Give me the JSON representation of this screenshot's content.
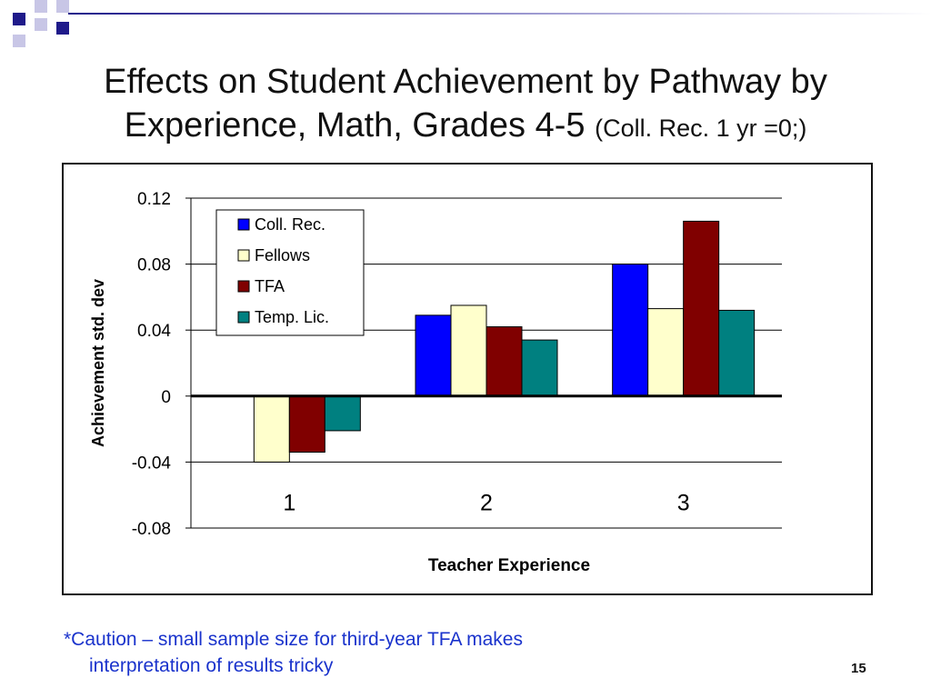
{
  "slide": {
    "title_line1": "Effects on Student Achievement by Pathway by",
    "title_line2": "Experience, Math, Grades 4-5",
    "title_note": "(Coll. Rec. 1 yr =0;)",
    "footnote_line1": "*Caution – small sample size for third-year TFA makes",
    "footnote_line2": "interpretation of results tricky",
    "page_number": "15",
    "accent_colors": {
      "dark_blue": "#1f1a8a",
      "light_blue": "#8a86c8"
    }
  },
  "chart_data": {
    "type": "bar",
    "categories": [
      "1",
      "2",
      "3"
    ],
    "xlabel": "Teacher Experience",
    "ylabel": "Achievement std. dev",
    "ylim": [
      -0.08,
      0.12
    ],
    "yticks": [
      0.12,
      0.08,
      0.04,
      0,
      -0.04,
      -0.08
    ],
    "ytick_labels": [
      "0.12",
      "0.08",
      "0.04",
      "0",
      "-0.04",
      "-0.08"
    ],
    "grid": true,
    "legend_position": "top-left",
    "series": [
      {
        "name": "Coll. Rec.",
        "color": "#0000ff",
        "values": [
          0,
          0.049,
          0.08
        ]
      },
      {
        "name": "Fellows",
        "color": "#ffffcc",
        "values": [
          -0.04,
          0.055,
          0.053
        ]
      },
      {
        "name": "TFA",
        "color": "#800000",
        "values": [
          -0.034,
          0.042,
          0.106
        ]
      },
      {
        "name": "Temp. Lic.",
        "color": "#008080",
        "values": [
          -0.021,
          0.034,
          0.052
        ]
      }
    ]
  }
}
